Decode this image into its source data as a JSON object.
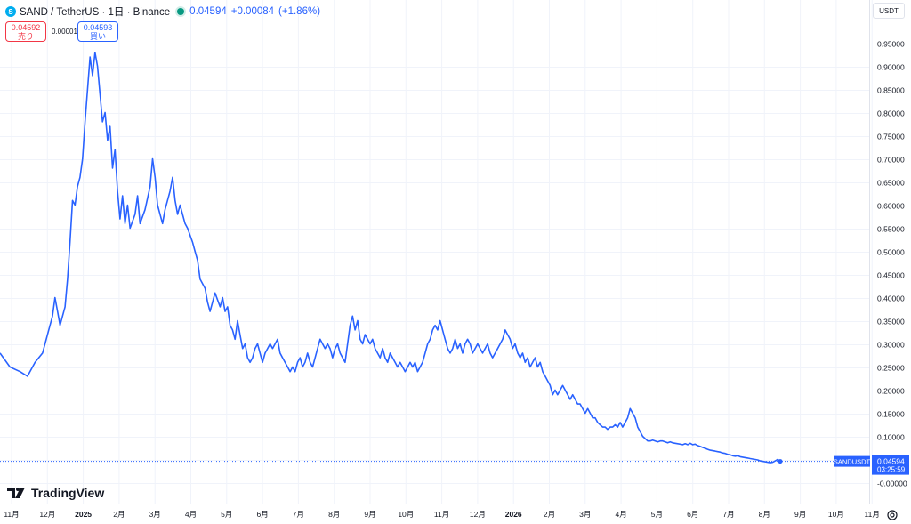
{
  "header": {
    "symbol_logo_text": "S",
    "title": "SAND / TetherUS · 1日 · Binance",
    "last": "0.04594",
    "change": "+0.00084",
    "change_pct": "(+1.86%)"
  },
  "trade": {
    "sell_price": "0.04592",
    "sell_label": "売り",
    "spread": "0.00001",
    "buy_price": "0.04593",
    "buy_label": "買い"
  },
  "price_axis": {
    "unit": "USDT"
  },
  "brand": {
    "name": "TradingView"
  },
  "chart_data": {
    "type": "line",
    "ylim": [
      -0.02,
      0.97
    ],
    "yticks": [
      "0.95000",
      "0.90000",
      "0.85000",
      "0.80000",
      "0.75000",
      "0.70000",
      "0.65000",
      "0.60000",
      "0.55000",
      "0.50000",
      "0.45000",
      "0.40000",
      "0.35000",
      "0.30000",
      "0.25000",
      "0.20000",
      "0.15000",
      "0.10000",
      "0.05000",
      "-0.00000"
    ],
    "ytick_values": [
      0.95,
      0.9,
      0.85,
      0.8,
      0.75,
      0.7,
      0.65,
      0.6,
      0.55,
      0.5,
      0.45,
      0.4,
      0.35,
      0.3,
      0.25,
      0.2,
      0.15,
      0.1,
      0.05,
      0.0
    ],
    "xlim": [
      0,
      1012
    ],
    "xticks": [
      {
        "label": "11月",
        "x": 0
      },
      {
        "label": "12月",
        "x": 30
      },
      {
        "label": "2025",
        "x": 61,
        "bold": true
      },
      {
        "label": "2月",
        "x": 92
      },
      {
        "label": "3月",
        "x": 120
      },
      {
        "label": "4月",
        "x": 151
      },
      {
        "label": "5月",
        "x": 181
      },
      {
        "label": "6月",
        "x": 212
      },
      {
        "label": "7月",
        "x": 242
      },
      {
        "label": "8月",
        "x": 273
      },
      {
        "label": "9月",
        "x": 304
      },
      {
        "label": "10月",
        "x": 334
      },
      {
        "label": "11月",
        "x": 365
      },
      {
        "label": "12月",
        "x": 395
      },
      {
        "label": "2026",
        "x": 426,
        "bold": true
      },
      {
        "label": "2月",
        "x": 457
      },
      {
        "label": "3月",
        "x": 485
      },
      {
        "label": "4月",
        "x": 516
      },
      {
        "label": "5月",
        "x": 546
      },
      {
        "label": "6月",
        "x": 577
      },
      {
        "label": "7月",
        "x": 607
      },
      {
        "label": "8月",
        "x": 638
      },
      {
        "label": "9月",
        "x": 669
      },
      {
        "label": "10月",
        "x": 699
      },
      {
        "label": "11月",
        "x": 730
      }
    ],
    "series": [
      {
        "color": "#2962ff",
        "points": [
          [
            0,
            0.28
          ],
          [
            4,
            0.25
          ],
          [
            8,
            0.24
          ],
          [
            11,
            0.23
          ],
          [
            14,
            0.26
          ],
          [
            17,
            0.28
          ],
          [
            19,
            0.32
          ],
          [
            21,
            0.36
          ],
          [
            22,
            0.4
          ],
          [
            23,
            0.37
          ],
          [
            24,
            0.34
          ],
          [
            26,
            0.38
          ],
          [
            27,
            0.44
          ],
          [
            28,
            0.52
          ],
          [
            29,
            0.61
          ],
          [
            30,
            0.6
          ],
          [
            31,
            0.64
          ],
          [
            32,
            0.66
          ],
          [
            33,
            0.7
          ],
          [
            34,
            0.78
          ],
          [
            35,
            0.85
          ],
          [
            36,
            0.92
          ],
          [
            37,
            0.88
          ],
          [
            38,
            0.93
          ],
          [
            39,
            0.9
          ],
          [
            40,
            0.84
          ],
          [
            41,
            0.78
          ],
          [
            42,
            0.8
          ],
          [
            43,
            0.74
          ],
          [
            44,
            0.77
          ],
          [
            45,
            0.68
          ],
          [
            46,
            0.72
          ],
          [
            47,
            0.63
          ],
          [
            48,
            0.57
          ],
          [
            49,
            0.62
          ],
          [
            50,
            0.56
          ],
          [
            51,
            0.6
          ],
          [
            52,
            0.55
          ],
          [
            54,
            0.58
          ],
          [
            55,
            0.62
          ],
          [
            56,
            0.56
          ],
          [
            58,
            0.59
          ],
          [
            60,
            0.64
          ],
          [
            61,
            0.7
          ],
          [
            62,
            0.66
          ],
          [
            63,
            0.6
          ],
          [
            65,
            0.56
          ],
          [
            66,
            0.59
          ],
          [
            68,
            0.63
          ],
          [
            69,
            0.66
          ],
          [
            70,
            0.61
          ],
          [
            71,
            0.58
          ],
          [
            72,
            0.6
          ],
          [
            74,
            0.56
          ],
          [
            75,
            0.55
          ],
          [
            77,
            0.52
          ],
          [
            78,
            0.5
          ],
          [
            79,
            0.48
          ],
          [
            80,
            0.44
          ],
          [
            82,
            0.42
          ],
          [
            83,
            0.39
          ],
          [
            84,
            0.37
          ],
          [
            85,
            0.39
          ],
          [
            86,
            0.41
          ],
          [
            88,
            0.38
          ],
          [
            89,
            0.4
          ],
          [
            90,
            0.37
          ],
          [
            91,
            0.38
          ],
          [
            92,
            0.34
          ],
          [
            93,
            0.33
          ],
          [
            94,
            0.31
          ],
          [
            95,
            0.35
          ],
          [
            96,
            0.32
          ],
          [
            97,
            0.29
          ],
          [
            98,
            0.3
          ],
          [
            99,
            0.27
          ],
          [
            100,
            0.26
          ],
          [
            101,
            0.27
          ],
          [
            102,
            0.29
          ],
          [
            103,
            0.3
          ],
          [
            104,
            0.28
          ],
          [
            105,
            0.26
          ],
          [
            106,
            0.28
          ],
          [
            107,
            0.29
          ],
          [
            108,
            0.3
          ],
          [
            109,
            0.29
          ],
          [
            110,
            0.3
          ],
          [
            111,
            0.31
          ],
          [
            112,
            0.28
          ],
          [
            113,
            0.27
          ],
          [
            114,
            0.26
          ],
          [
            115,
            0.25
          ],
          [
            116,
            0.24
          ],
          [
            117,
            0.25
          ],
          [
            118,
            0.24
          ],
          [
            119,
            0.26
          ],
          [
            120,
            0.27
          ],
          [
            121,
            0.25
          ],
          [
            122,
            0.26
          ],
          [
            123,
            0.28
          ],
          [
            124,
            0.26
          ],
          [
            125,
            0.25
          ],
          [
            126,
            0.27
          ],
          [
            127,
            0.29
          ],
          [
            128,
            0.31
          ],
          [
            129,
            0.3
          ],
          [
            130,
            0.29
          ],
          [
            131,
            0.3
          ],
          [
            132,
            0.29
          ],
          [
            133,
            0.27
          ],
          [
            134,
            0.29
          ],
          [
            135,
            0.3
          ],
          [
            136,
            0.28
          ],
          [
            137,
            0.27
          ],
          [
            138,
            0.26
          ],
          [
            139,
            0.3
          ],
          [
            140,
            0.34
          ],
          [
            141,
            0.36
          ],
          [
            142,
            0.33
          ],
          [
            143,
            0.35
          ],
          [
            144,
            0.31
          ],
          [
            145,
            0.3
          ],
          [
            146,
            0.32
          ],
          [
            147,
            0.31
          ],
          [
            148,
            0.3
          ],
          [
            149,
            0.31
          ],
          [
            150,
            0.29
          ],
          [
            151,
            0.28
          ],
          [
            152,
            0.27
          ],
          [
            153,
            0.29
          ],
          [
            154,
            0.27
          ],
          [
            155,
            0.26
          ],
          [
            156,
            0.28
          ],
          [
            157,
            0.27
          ],
          [
            158,
            0.26
          ],
          [
            159,
            0.25
          ],
          [
            160,
            0.26
          ],
          [
            161,
            0.25
          ],
          [
            162,
            0.24
          ],
          [
            163,
            0.25
          ],
          [
            164,
            0.26
          ],
          [
            165,
            0.25
          ],
          [
            166,
            0.26
          ],
          [
            167,
            0.24
          ],
          [
            168,
            0.25
          ],
          [
            169,
            0.26
          ],
          [
            170,
            0.28
          ],
          [
            171,
            0.3
          ],
          [
            172,
            0.31
          ],
          [
            173,
            0.33
          ],
          [
            174,
            0.34
          ],
          [
            175,
            0.33
          ],
          [
            176,
            0.35
          ],
          [
            177,
            0.33
          ],
          [
            178,
            0.31
          ],
          [
            179,
            0.29
          ],
          [
            180,
            0.28
          ],
          [
            181,
            0.29
          ],
          [
            182,
            0.31
          ],
          [
            183,
            0.29
          ],
          [
            184,
            0.3
          ],
          [
            185,
            0.28
          ],
          [
            186,
            0.3
          ],
          [
            187,
            0.31
          ],
          [
            188,
            0.3
          ],
          [
            189,
            0.28
          ],
          [
            190,
            0.29
          ],
          [
            191,
            0.3
          ],
          [
            192,
            0.29
          ],
          [
            193,
            0.28
          ],
          [
            194,
            0.29
          ],
          [
            195,
            0.3
          ],
          [
            196,
            0.28
          ],
          [
            197,
            0.27
          ],
          [
            198,
            0.28
          ],
          [
            199,
            0.29
          ],
          [
            200,
            0.3
          ],
          [
            201,
            0.31
          ],
          [
            202,
            0.33
          ],
          [
            203,
            0.32
          ],
          [
            204,
            0.31
          ],
          [
            205,
            0.29
          ],
          [
            206,
            0.3
          ],
          [
            207,
            0.28
          ],
          [
            208,
            0.27
          ],
          [
            209,
            0.28
          ],
          [
            210,
            0.26
          ],
          [
            211,
            0.27
          ],
          [
            212,
            0.25
          ],
          [
            213,
            0.26
          ],
          [
            214,
            0.27
          ],
          [
            215,
            0.25
          ],
          [
            216,
            0.26
          ],
          [
            217,
            0.24
          ],
          [
            218,
            0.23
          ],
          [
            219,
            0.22
          ],
          [
            220,
            0.21
          ],
          [
            221,
            0.19
          ],
          [
            222,
            0.2
          ],
          [
            223,
            0.19
          ],
          [
            224,
            0.2
          ],
          [
            225,
            0.21
          ],
          [
            226,
            0.2
          ],
          [
            227,
            0.19
          ],
          [
            228,
            0.18
          ],
          [
            229,
            0.19
          ],
          [
            230,
            0.18
          ],
          [
            231,
            0.17
          ],
          [
            232,
            0.17
          ],
          [
            233,
            0.16
          ],
          [
            234,
            0.15
          ],
          [
            235,
            0.16
          ],
          [
            236,
            0.15
          ],
          [
            237,
            0.14
          ],
          [
            238,
            0.14
          ],
          [
            239,
            0.13
          ],
          [
            240,
            0.125
          ],
          [
            241,
            0.12
          ],
          [
            242,
            0.12
          ],
          [
            243,
            0.115
          ],
          [
            244,
            0.12
          ],
          [
            245,
            0.12
          ],
          [
            246,
            0.125
          ],
          [
            247,
            0.12
          ],
          [
            248,
            0.13
          ],
          [
            249,
            0.12
          ],
          [
            250,
            0.13
          ],
          [
            251,
            0.14
          ],
          [
            252,
            0.16
          ],
          [
            253,
            0.15
          ],
          [
            254,
            0.14
          ],
          [
            255,
            0.12
          ],
          [
            256,
            0.11
          ],
          [
            257,
            0.1
          ],
          [
            258,
            0.095
          ],
          [
            259,
            0.09
          ],
          [
            260,
            0.09
          ],
          [
            261,
            0.092
          ],
          [
            262,
            0.09
          ],
          [
            263,
            0.088
          ],
          [
            264,
            0.09
          ],
          [
            265,
            0.09
          ],
          [
            266,
            0.088
          ],
          [
            267,
            0.086
          ],
          [
            268,
            0.088
          ],
          [
            269,
            0.086
          ],
          [
            270,
            0.085
          ],
          [
            271,
            0.084
          ],
          [
            272,
            0.083
          ],
          [
            273,
            0.082
          ],
          [
            274,
            0.084
          ],
          [
            275,
            0.082
          ],
          [
            276,
            0.085
          ],
          [
            277,
            0.082
          ],
          [
            278,
            0.083
          ],
          [
            279,
            0.08
          ],
          [
            280,
            0.078
          ],
          [
            281,
            0.076
          ],
          [
            282,
            0.074
          ],
          [
            283,
            0.072
          ],
          [
            284,
            0.07
          ],
          [
            285,
            0.069
          ],
          [
            286,
            0.068
          ],
          [
            287,
            0.067
          ],
          [
            288,
            0.066
          ],
          [
            289,
            0.064
          ],
          [
            290,
            0.063
          ],
          [
            291,
            0.061
          ],
          [
            292,
            0.06
          ],
          [
            293,
            0.058
          ],
          [
            294,
            0.057
          ],
          [
            295,
            0.058
          ],
          [
            296,
            0.056
          ],
          [
            297,
            0.055
          ],
          [
            298,
            0.054
          ],
          [
            299,
            0.053
          ],
          [
            300,
            0.052
          ],
          [
            301,
            0.051
          ],
          [
            302,
            0.05
          ],
          [
            303,
            0.049
          ],
          [
            304,
            0.047
          ],
          [
            305,
            0.046
          ],
          [
            306,
            0.045
          ],
          [
            307,
            0.044
          ],
          [
            308,
            0.043
          ],
          [
            309,
            0.044
          ],
          [
            310,
            0.047
          ],
          [
            311,
            0.05
          ],
          [
            312,
            0.046
          ]
        ]
      }
    ],
    "last_label": {
      "name": "SANDUSDT",
      "value": "0.04594",
      "countdown": "03:25:59",
      "y": 0.04594
    }
  }
}
